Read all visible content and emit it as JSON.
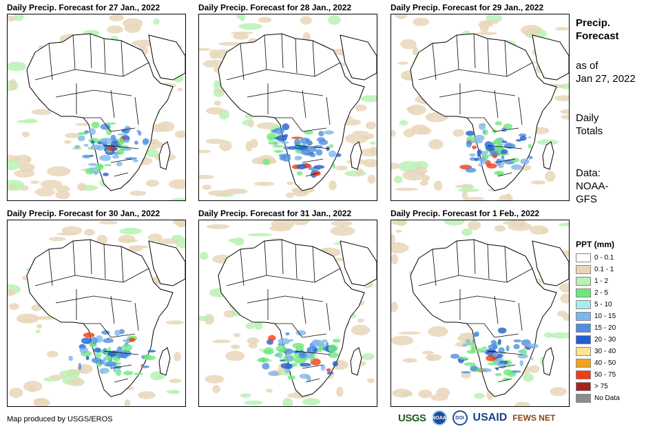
{
  "panels": [
    {
      "title": "Daily Precip. Forecast for 27 Jan., 2022"
    },
    {
      "title": "Daily Precip. Forecast for 28 Jan., 2022"
    },
    {
      "title": "Daily Precip. Forecast for 29 Jan., 2022"
    },
    {
      "title": "Daily Precip. Forecast for 30 Jan., 2022"
    },
    {
      "title": "Daily Precip. Forecast for 31 Jan., 2022"
    },
    {
      "title": "Daily Precip. Forecast for 1 Feb., 2022"
    }
  ],
  "side": {
    "title_line1": "Precip.",
    "title_line2": "Forecast",
    "asof_line1": "as of",
    "asof_line2": "Jan 27, 2022",
    "totals_line1": "Daily",
    "totals_line2": "Totals",
    "data_line1": "Data:",
    "data_line2": "NOAA-",
    "data_line3": "GFS"
  },
  "legend": {
    "title": "PPT (mm)",
    "items": [
      {
        "label": "0 - 0.1",
        "color": "#ffffff"
      },
      {
        "label": "0.1 - 1",
        "color": "#e8d6b8"
      },
      {
        "label": "1 - 2",
        "color": "#b8f2b4"
      },
      {
        "label": "2 - 5",
        "color": "#6ee87a"
      },
      {
        "label": "5 - 10",
        "color": "#a8ecf0"
      },
      {
        "label": "10 - 15",
        "color": "#7fb6ec"
      },
      {
        "label": "15 - 20",
        "color": "#4e8fe0"
      },
      {
        "label": "20 - 30",
        "color": "#1f5fd0"
      },
      {
        "label": "30 - 40",
        "color": "#fde490"
      },
      {
        "label": "40 - 50",
        "color": "#f5a21b"
      },
      {
        "label": "50 - 75",
        "color": "#ef3d16"
      },
      {
        "label": "> 75",
        "color": "#a82020"
      },
      {
        "label": "No Data",
        "color": "#8c8c8c"
      }
    ]
  },
  "credit": "Map produced by USGS/EROS",
  "logos": {
    "usgs": "USGS",
    "noaa": "NOAA",
    "dept": "DOI",
    "usaid": "USAID",
    "fews": "FEWS NET"
  }
}
